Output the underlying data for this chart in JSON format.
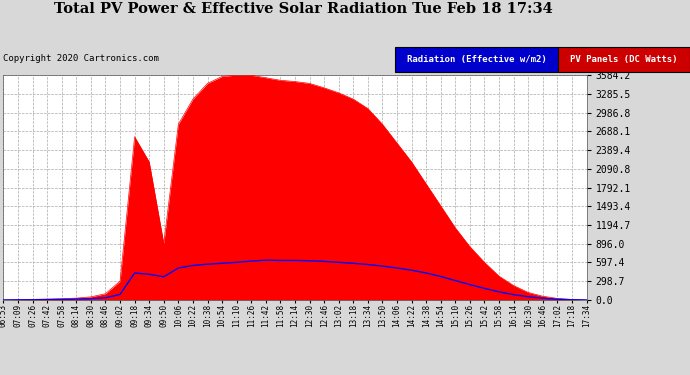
{
  "title": "Total PV Power & Effective Solar Radiation Tue Feb 18 17:34",
  "copyright": "Copyright 2020 Cartronics.com",
  "yticks": [
    0.0,
    298.7,
    597.4,
    896.0,
    1194.7,
    1493.4,
    1792.1,
    2090.8,
    2389.4,
    2688.1,
    2986.8,
    3285.5,
    3584.2
  ],
  "ymax": 3584.2,
  "bg_color": "#d8d8d8",
  "plot_bg_color": "#ffffff",
  "grid_color": "#aaaaaa",
  "red_color": "#ff0000",
  "blue_color": "#0000ff",
  "legend_radiation_bg": "#0000cc",
  "legend_pv_bg": "#cc0000",
  "pv_values": [
    0,
    5,
    10,
    15,
    20,
    30,
    50,
    100,
    300,
    2600,
    2200,
    900,
    2800,
    3200,
    3450,
    3560,
    3584,
    3580,
    3540,
    3500,
    3480,
    3450,
    3380,
    3300,
    3200,
    3050,
    2800,
    2500,
    2200,
    1850,
    1500,
    1150,
    850,
    600,
    380,
    230,
    120,
    60,
    25,
    8,
    0
  ],
  "radiation_values": [
    0,
    2,
    4,
    6,
    10,
    15,
    20,
    35,
    90,
    430,
    410,
    370,
    510,
    550,
    570,
    585,
    600,
    620,
    635,
    630,
    630,
    625,
    615,
    600,
    585,
    565,
    540,
    510,
    475,
    430,
    375,
    310,
    245,
    185,
    130,
    85,
    52,
    28,
    12,
    4,
    0
  ],
  "xtick_labels": [
    "06:53",
    "07:09",
    "07:26",
    "07:42",
    "07:58",
    "08:14",
    "08:30",
    "08:46",
    "09:02",
    "09:18",
    "09:34",
    "09:50",
    "10:06",
    "10:22",
    "10:38",
    "10:54",
    "11:10",
    "11:26",
    "11:42",
    "11:58",
    "12:14",
    "12:30",
    "12:46",
    "13:02",
    "13:18",
    "13:34",
    "13:50",
    "14:06",
    "14:22",
    "14:38",
    "14:54",
    "15:10",
    "15:26",
    "15:42",
    "15:58",
    "16:14",
    "16:30",
    "16:46",
    "17:02",
    "17:18",
    "17:34"
  ]
}
